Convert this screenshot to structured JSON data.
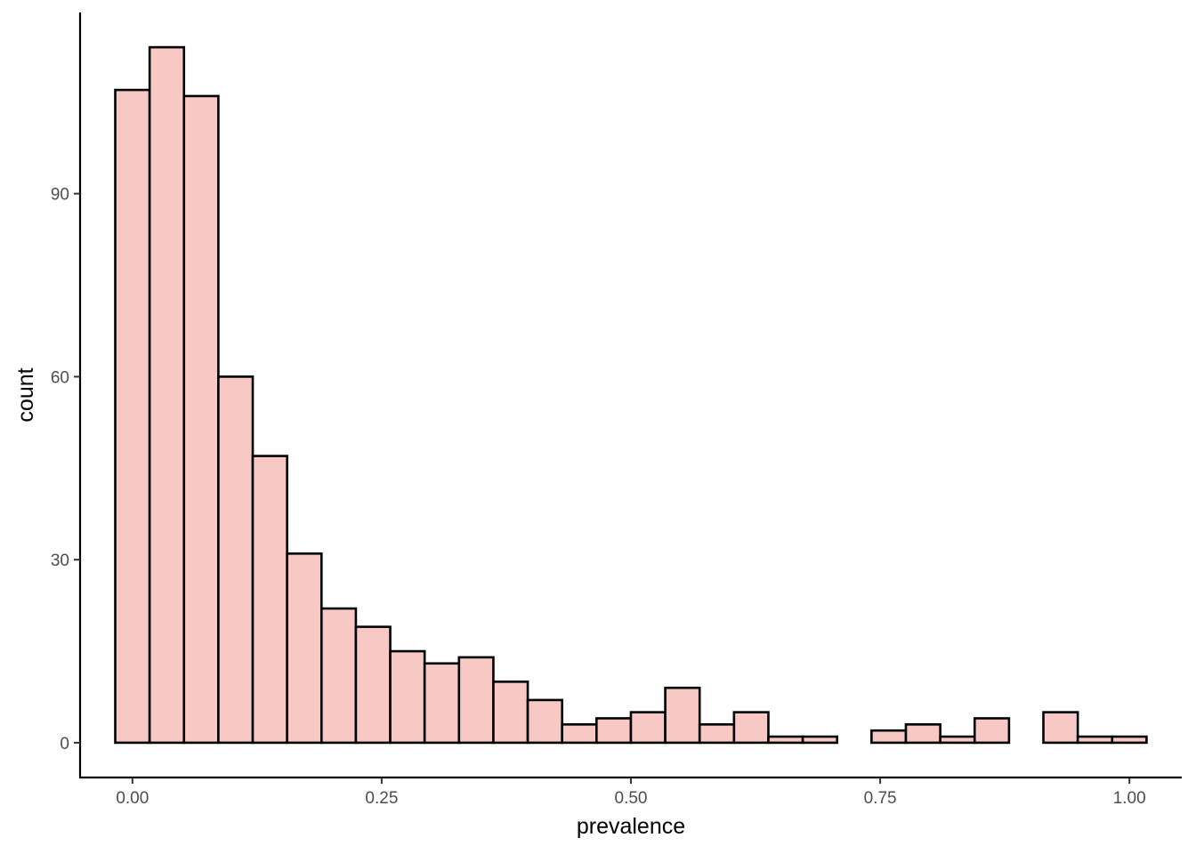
{
  "chart_data": {
    "type": "bar",
    "title": "",
    "xlabel": "prevalence",
    "ylabel": "count",
    "bar_fill": "#F8C8C5",
    "bar_stroke": "#000000",
    "grid": false,
    "legend": "none",
    "xlim": [
      -0.0525,
      1.0525
    ],
    "ylim": [
      -5.7,
      119.7
    ],
    "xticks": [
      0.0,
      0.25,
      0.5,
      0.75,
      1.0
    ],
    "xtick_labels": [
      "0.00",
      "0.25",
      "0.50",
      "0.75",
      "1.00"
    ],
    "yticks": [
      0,
      30,
      60,
      90
    ],
    "ytick_labels": [
      "0",
      "30",
      "60",
      "90"
    ],
    "bin_width": 0.03448,
    "bin_start": -0.01724,
    "counts": [
      107,
      114,
      106,
      60,
      47,
      31,
      22,
      19,
      15,
      13,
      14,
      10,
      7,
      3,
      4,
      5,
      9,
      3,
      5,
      1,
      1,
      0,
      2,
      3,
      1,
      4,
      0,
      5,
      1,
      1
    ]
  }
}
